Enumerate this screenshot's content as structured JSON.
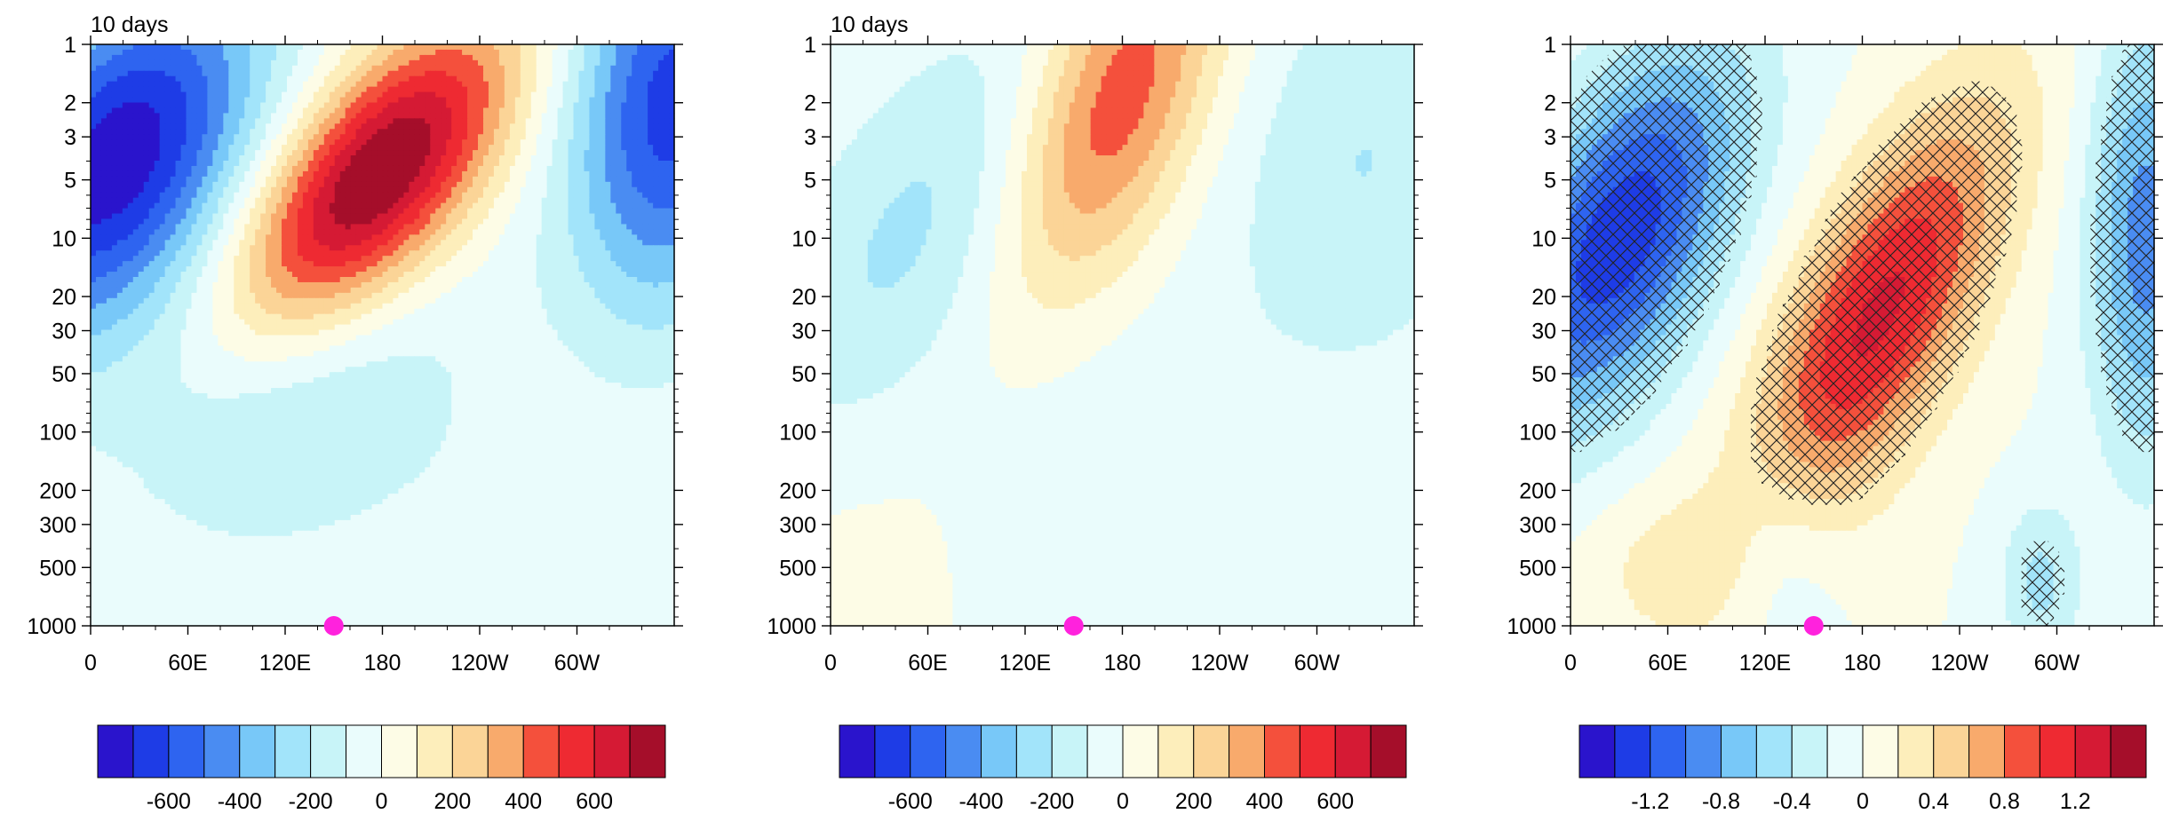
{
  "chart_data": [
    {
      "type": "contour",
      "title": "10 days",
      "x_ticks": [
        "0",
        "60E",
        "120E",
        "180",
        "120W",
        "60W"
      ],
      "y_ticks": [
        "1",
        "2",
        "3",
        "5",
        "10",
        "20",
        "30",
        "50",
        "100",
        "200",
        "300",
        "500",
        "1000"
      ],
      "y_scale": "log",
      "xlim": [
        0,
        360
      ],
      "ylim": [
        1000,
        1
      ],
      "marker": {
        "x": 150,
        "y": 1000,
        "color": "#ff22dd"
      },
      "peak_positive": {
        "x": 170,
        "y": 5,
        "value": 700
      },
      "peak_negative": {
        "x": 15,
        "y": 4,
        "value": -700
      },
      "colorbar": {
        "colors": [
          "#2a14cc",
          "#1e3ce6",
          "#2e64f0",
          "#4a8cf2",
          "#78c8f8",
          "#a2e4fa",
          "#c8f4f8",
          "#eafcfc",
          "#fdfce6",
          "#fdeebb",
          "#fbd497",
          "#f8aa6c",
          "#f4503c",
          "#ee2a32",
          "#d51a34",
          "#a50e2a"
        ],
        "labels": [
          "-600",
          "-400",
          "-200",
          "0",
          "200",
          "400",
          "600"
        ]
      }
    },
    {
      "type": "contour",
      "title": "10 days",
      "x_ticks": [
        "0",
        "60E",
        "120E",
        "180",
        "120W",
        "60W"
      ],
      "y_ticks": [
        "1",
        "2",
        "3",
        "5",
        "10",
        "20",
        "30",
        "50",
        "100",
        "200",
        "300",
        "500",
        "1000"
      ],
      "y_scale": "log",
      "xlim": [
        0,
        360
      ],
      "ylim": [
        1000,
        1
      ],
      "marker": {
        "x": 150,
        "y": 1000,
        "color": "#ff22dd"
      },
      "peak_positive": {
        "x": 175,
        "y": 2,
        "value": 450
      },
      "colorbar": {
        "colors": [
          "#2a14cc",
          "#1e3ce6",
          "#2e64f0",
          "#4a8cf2",
          "#78c8f8",
          "#a2e4fa",
          "#c8f4f8",
          "#eafcfc",
          "#fdfce6",
          "#fdeebb",
          "#fbd497",
          "#f8aa6c",
          "#f4503c",
          "#ee2a32",
          "#d51a34",
          "#a50e2a"
        ],
        "labels": [
          "-600",
          "-400",
          "-200",
          "0",
          "200",
          "400",
          "600"
        ]
      }
    },
    {
      "type": "contour",
      "title": "",
      "x_ticks": [
        "0",
        "60E",
        "120E",
        "180",
        "120W",
        "60W"
      ],
      "y_ticks": [
        "1",
        "2",
        "3",
        "5",
        "10",
        "20",
        "30",
        "50",
        "100",
        "200",
        "300",
        "500",
        "1000"
      ],
      "y_scale": "log",
      "xlim": [
        0,
        360
      ],
      "ylim": [
        1000,
        1
      ],
      "marker": {
        "x": 150,
        "y": 1000,
        "color": "#ff22dd"
      },
      "hatched_regions": "significant areas (cross-hatched)",
      "peak_positive": {
        "x": 190,
        "y": 25,
        "value": 1.0
      },
      "peak_negative": {
        "x": 30,
        "y": 10,
        "value": -1.2
      },
      "colorbar": {
        "colors": [
          "#2a14cc",
          "#1e3ce6",
          "#2e64f0",
          "#4a8cf2",
          "#78c8f8",
          "#a2e4fa",
          "#c8f4f8",
          "#eafcfc",
          "#fdfce6",
          "#fdeebb",
          "#fbd497",
          "#f8aa6c",
          "#f4503c",
          "#ee2a32",
          "#d51a34",
          "#a50e2a"
        ],
        "labels": [
          "-1.2",
          "-0.8",
          "-0.4",
          "0",
          "0.4",
          "0.8",
          "1.2"
        ]
      }
    }
  ]
}
